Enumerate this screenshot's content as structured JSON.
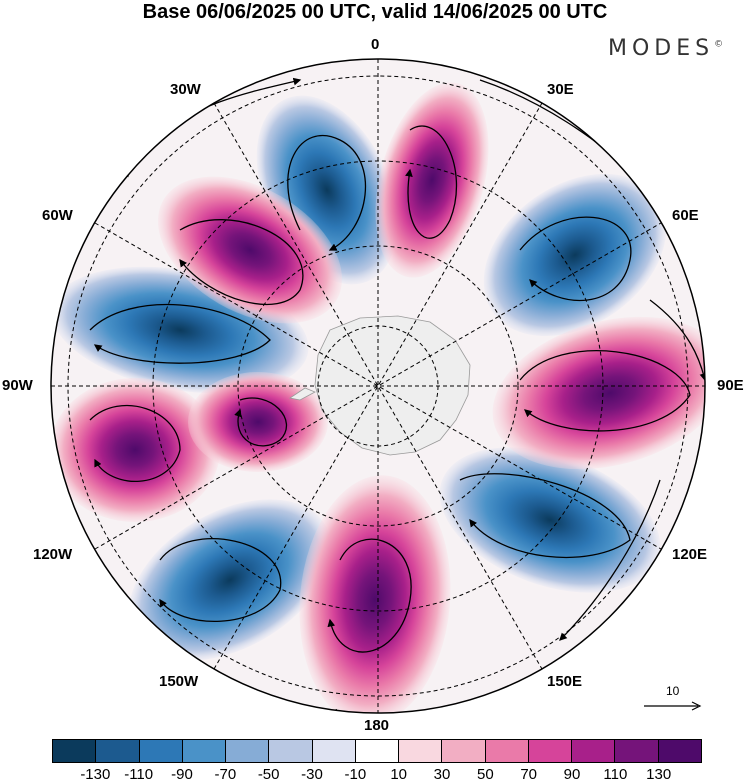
{
  "title": "Base 06/06/2025 00 UTC, valid 14/06/2025 00 UTC",
  "brand": "MODES",
  "brand_mark": "©",
  "lon_labels": {
    "n0": "0",
    "e30": "30E",
    "e60": "60E",
    "e90": "90E",
    "e120": "120E",
    "e150": "150E",
    "s180": "180",
    "w150": "150W",
    "w120": "120W",
    "w90": "90W",
    "w60": "60W",
    "w30": "30W"
  },
  "reference_vector": "10",
  "colorbar": {
    "colors": [
      "#0b3a5c",
      "#1c5a8f",
      "#2d78b6",
      "#4a92c8",
      "#86acd6",
      "#b9c8e3",
      "#dfe3f2",
      "#ffffff",
      "#f9d8e0",
      "#f2aec3",
      "#ea7aa9",
      "#d6449a",
      "#a8208a",
      "#75147a",
      "#4e0a6a"
    ],
    "ticks": [
      "-130",
      "-110",
      "-90",
      "-70",
      "-50",
      "-30",
      "-10",
      "10",
      "30",
      "50",
      "70",
      "90",
      "110",
      "130"
    ]
  }
}
